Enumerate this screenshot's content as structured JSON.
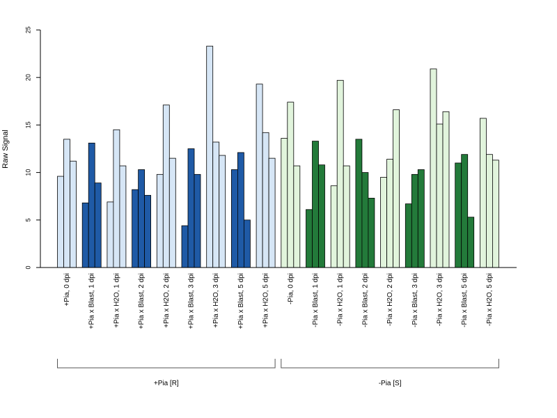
{
  "chart_data": {
    "type": "bar",
    "title": "",
    "xlabel": "",
    "ylabel": "Raw Signal",
    "ylim": [
      0,
      25
    ],
    "yticks": [
      0,
      5,
      10,
      15,
      20,
      25
    ],
    "grid": false,
    "legend": "none",
    "bars_per_category": 3,
    "colors": {
      "pia_pos_light": "#d6e6f6",
      "pia_pos_dark": "#1f5aa6",
      "pia_neg_light": "#e1f4dc",
      "pia_neg_dark": "#237a3a",
      "edge": "#000000"
    },
    "categories": [
      {
        "label": "+Pia, 0 dpi",
        "shade": "pia_pos_light",
        "values": [
          9.6,
          13.5,
          11.2
        ]
      },
      {
        "label": "+Pia x Blast, 1 dpi",
        "shade": "pia_pos_dark",
        "values": [
          6.8,
          13.1,
          8.9
        ]
      },
      {
        "label": "+Pia x H2O, 1 dpi",
        "shade": "pia_pos_light",
        "values": [
          6.9,
          14.5,
          10.7
        ]
      },
      {
        "label": "+Pia x Blast, 2 dpi",
        "shade": "pia_pos_dark",
        "values": [
          8.2,
          10.3,
          7.6
        ]
      },
      {
        "label": "+Pia x H2O, 2 dpi",
        "shade": "pia_pos_light",
        "values": [
          9.8,
          17.1,
          11.5
        ]
      },
      {
        "label": "+Pia x Blast, 3 dpi",
        "shade": "pia_pos_dark",
        "values": [
          4.4,
          12.5,
          9.8
        ]
      },
      {
        "label": "+Pia x H2O, 3 dpi",
        "shade": "pia_pos_light",
        "values": [
          23.3,
          13.2,
          11.8
        ]
      },
      {
        "label": "+Pia x Blast, 5 dpi",
        "shade": "pia_pos_dark",
        "values": [
          10.3,
          12.1,
          5.0
        ]
      },
      {
        "label": "+Pia x H2O, 5 dpi",
        "shade": "pia_pos_light",
        "values": [
          19.3,
          14.2,
          11.5
        ]
      },
      {
        "label": "-Pia, 0 dpi",
        "shade": "pia_neg_light",
        "values": [
          13.6,
          17.4,
          10.7
        ]
      },
      {
        "label": "-Pia x Blast, 1 dpi",
        "shade": "pia_neg_dark",
        "values": [
          6.1,
          13.3,
          10.8
        ]
      },
      {
        "label": "-Pia x H2O, 1 dpi",
        "shade": "pia_neg_light",
        "values": [
          8.6,
          19.7,
          10.7
        ]
      },
      {
        "label": "-Pia x Blast, 2 dpi",
        "shade": "pia_neg_dark",
        "values": [
          13.5,
          10.0,
          7.3
        ]
      },
      {
        "label": "-Pia x H2O, 2 dpi",
        "shade": "pia_neg_light",
        "values": [
          9.5,
          11.4,
          16.6
        ]
      },
      {
        "label": "-Pia x Blast, 3 dpi",
        "shade": "pia_neg_dark",
        "values": [
          6.7,
          9.8,
          10.3
        ]
      },
      {
        "label": "-Pia x H2O, 3 dpi",
        "shade": "pia_neg_light",
        "values": [
          20.9,
          15.1,
          16.4
        ]
      },
      {
        "label": "-Pia x Blast, 5 dpi",
        "shade": "pia_neg_dark",
        "values": [
          11.0,
          11.9,
          5.3
        ]
      },
      {
        "label": "-Pia x H2O, 5 dpi",
        "shade": "pia_neg_light",
        "values": [
          15.7,
          11.9,
          11.3
        ]
      }
    ],
    "groups": [
      {
        "label": "+Pia [R]",
        "from": 0,
        "to": 8
      },
      {
        "label": "-Pia [S]",
        "from": 9,
        "to": 17
      }
    ]
  }
}
